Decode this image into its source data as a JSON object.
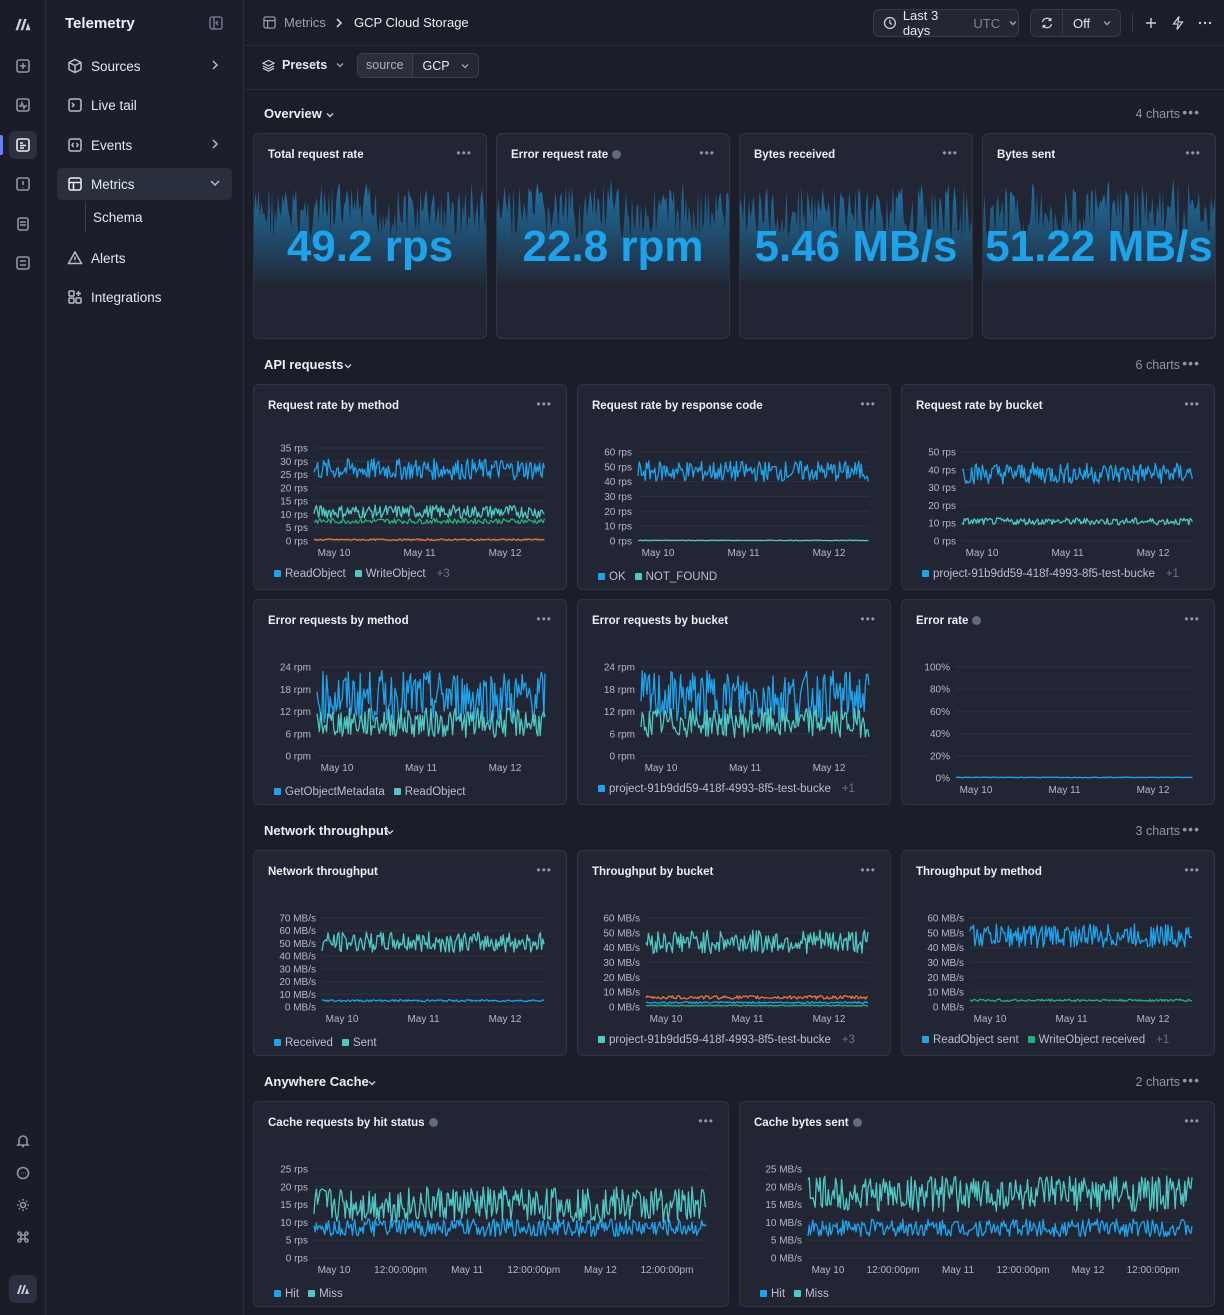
{
  "app": {
    "name": "Telemetry"
  },
  "nav": {
    "sources": "Sources",
    "live_tail": "Live tail",
    "events": "Events",
    "metrics": "Metrics",
    "schema": "Schema",
    "alerts": "Alerts",
    "integrations": "Integrations"
  },
  "breadcrumb": {
    "parent": "Metrics",
    "current": "GCP Cloud Storage"
  },
  "time": {
    "label": "Last 3 days",
    "tz": "UTC"
  },
  "refresh": {
    "value": "Off"
  },
  "filters": {
    "presets": "Presets",
    "key": "source",
    "value": "GCP"
  },
  "sections": [
    {
      "title": "Overview",
      "count": "4 charts"
    },
    {
      "title": "API requests",
      "count": "6 charts"
    },
    {
      "title": "Network throughput",
      "count": "3 charts"
    },
    {
      "title": "Anywhere Cache",
      "count": "2 charts"
    }
  ],
  "stats": [
    {
      "title": "Total request rate",
      "value": "49.2 rps",
      "info": false
    },
    {
      "title": "Error request rate",
      "value": "22.8 rpm",
      "info": true
    },
    {
      "title": "Bytes received",
      "value": "5.46 MB/s",
      "info": false
    },
    {
      "title": "Bytes sent",
      "value": "51.22 MB/s",
      "info": false
    }
  ],
  "colors": {
    "blue": "#1ea3ea",
    "teal": "#4fc7c3",
    "green": "#22b07d",
    "orange": "#e8743b",
    "yellow": "#d9a43a"
  },
  "chart_data": [
    {
      "id": "c1",
      "title": "Request rate by method",
      "type": "line",
      "info": false,
      "yticks": [
        "35 rps",
        "30 rps",
        "25 rps",
        "20 rps",
        "15 rps",
        "10 rps",
        "5 rps",
        "0 rps"
      ],
      "ylim": [
        0,
        35
      ],
      "xticks": [
        "May 10",
        "May 11",
        "May 12"
      ],
      "series": [
        {
          "name": "ReadObject",
          "color": "#1ea3ea",
          "mean": 27,
          "amp": 4
        },
        {
          "name": "WriteObject",
          "color": "#4fc7c3",
          "mean": 11,
          "amp": 2.5
        },
        {
          "name": "",
          "color": "#22b07d",
          "mean": 7.5,
          "amp": 1
        },
        {
          "name": "",
          "color": "#e8743b",
          "mean": 0.5,
          "amp": 0.3
        }
      ],
      "legend": [
        "ReadObject",
        "WriteObject"
      ],
      "more": "+3"
    },
    {
      "id": "c2",
      "title": "Request rate by response code",
      "type": "line",
      "info": false,
      "yticks": [
        "60 rps",
        "50 rps",
        "40 rps",
        "30 rps",
        "20 rps",
        "10 rps",
        "0 rps"
      ],
      "ylim": [
        0,
        60
      ],
      "xticks": [
        "May 10",
        "May 11",
        "May 12"
      ],
      "series": [
        {
          "name": "OK",
          "color": "#1ea3ea",
          "mean": 47,
          "amp": 7
        },
        {
          "name": "NOT_FOUND",
          "color": "#4fc7c3",
          "mean": 0.4,
          "amp": 0.2
        }
      ],
      "legend": [
        "OK",
        "NOT_FOUND"
      ],
      "more": ""
    },
    {
      "id": "c3",
      "title": "Request rate by bucket",
      "type": "line",
      "info": false,
      "yticks": [
        "50 rps",
        "40 rps",
        "30 rps",
        "20 rps",
        "10 rps",
        "0 rps"
      ],
      "ylim": [
        0,
        50
      ],
      "xticks": [
        "May 10",
        "May 11",
        "May 12"
      ],
      "series": [
        {
          "name": "project-91b9dd59-418f-4993-8f5-test-bucke",
          "color": "#1ea3ea",
          "mean": 38,
          "amp": 6
        },
        {
          "name": "",
          "color": "#4fc7c3",
          "mean": 11,
          "amp": 2
        }
      ],
      "legend": [
        "project-91b9dd59-418f-4993-8f5-test-bucke"
      ],
      "more": "+1"
    },
    {
      "id": "c4",
      "title": "Error requests by method",
      "type": "line",
      "info": false,
      "yticks": [
        "24 rpm",
        "18 rpm",
        "12 rpm",
        "6 rpm",
        "0 rpm"
      ],
      "ylim": [
        0,
        24
      ],
      "xticks": [
        "May 10",
        "May 11",
        "May 12"
      ],
      "series": [
        {
          "name": "GetObjectMetadata",
          "color": "#1ea3ea",
          "mean": 16,
          "amp": 7
        },
        {
          "name": "ReadObject",
          "color": "#4fc7c3",
          "mean": 9,
          "amp": 4
        }
      ],
      "legend": [
        "GetObjectMetadata",
        "ReadObject"
      ],
      "more": ""
    },
    {
      "id": "c5",
      "title": "Error requests by bucket",
      "type": "line",
      "info": false,
      "yticks": [
        "24 rpm",
        "18 rpm",
        "12 rpm",
        "6 rpm",
        "0 rpm"
      ],
      "ylim": [
        0,
        24
      ],
      "xticks": [
        "May 10",
        "May 11",
        "May 12"
      ],
      "series": [
        {
          "name": "project-91b9dd59-418f-4993-8f5-test-bucke",
          "color": "#1ea3ea",
          "mean": 16,
          "amp": 7
        },
        {
          "name": "",
          "color": "#4fc7c3",
          "mean": 9,
          "amp": 4
        }
      ],
      "legend": [
        "project-91b9dd59-418f-4993-8f5-test-bucke"
      ],
      "more": "+1"
    },
    {
      "id": "c6",
      "title": "Error rate",
      "type": "line",
      "info": true,
      "yticks": [
        "100%",
        "80%",
        "60%",
        "40%",
        "20%",
        "0%"
      ],
      "ylim": [
        0,
        100
      ],
      "xticks": [
        "May 10",
        "May 11",
        "May 12"
      ],
      "series": [
        {
          "name": "",
          "color": "#1ea3ea",
          "mean": 0.6,
          "amp": 0.3
        }
      ],
      "legend": [],
      "more": ""
    },
    {
      "id": "c7",
      "title": "Network throughput",
      "type": "line",
      "info": false,
      "yticks": [
        "70 MB/s",
        "60 MB/s",
        "50 MB/s",
        "40 MB/s",
        "30 MB/s",
        "20 MB/s",
        "10 MB/s",
        "0 MB/s"
      ],
      "ylim": [
        0,
        70
      ],
      "xticks": [
        "May 10",
        "May 11",
        "May 12"
      ],
      "series": [
        {
          "name": "Received",
          "color": "#1ea3ea",
          "mean": 5,
          "amp": 0.8
        },
        {
          "name": "Sent",
          "color": "#4fc7c3",
          "mean": 51,
          "amp": 8
        }
      ],
      "legend": [
        "Received",
        "Sent"
      ],
      "more": ""
    },
    {
      "id": "c8",
      "title": "Throughput by bucket",
      "type": "line",
      "info": false,
      "yticks": [
        "60 MB/s",
        "50 MB/s",
        "40 MB/s",
        "30 MB/s",
        "20 MB/s",
        "10 MB/s",
        "0 MB/s"
      ],
      "ylim": [
        0,
        60
      ],
      "xticks": [
        "May 10",
        "May 11",
        "May 12"
      ],
      "series": [
        {
          "name": "project-91b9dd59-418f-4993-8f5-test-bucke",
          "color": "#4fc7c3",
          "mean": 44,
          "amp": 8
        },
        {
          "name": "",
          "color": "#e8743b",
          "mean": 6.5,
          "amp": 1.2
        },
        {
          "name": "",
          "color": "#1ea3ea",
          "mean": 3,
          "amp": 0.6
        },
        {
          "name": "",
          "color": "#22b07d",
          "mean": 1,
          "amp": 0.3
        }
      ],
      "legend": [
        "project-91b9dd59-418f-4993-8f5-test-bucke"
      ],
      "more": "+3"
    },
    {
      "id": "c9",
      "title": "Throughput by method",
      "type": "line",
      "info": false,
      "yticks": [
        "60 MB/s",
        "50 MB/s",
        "40 MB/s",
        "30 MB/s",
        "20 MB/s",
        "10 MB/s",
        "0 MB/s"
      ],
      "ylim": [
        0,
        60
      ],
      "xticks": [
        "May 10",
        "May 11",
        "May 12"
      ],
      "series": [
        {
          "name": "ReadObject sent",
          "color": "#1ea3ea",
          "mean": 48,
          "amp": 8
        },
        {
          "name": "WriteObject received",
          "color": "#22b07d",
          "mean": 4.5,
          "amp": 0.8
        }
      ],
      "legend": [
        "ReadObject sent",
        "WriteObject received"
      ],
      "more": "+1"
    },
    {
      "id": "c10",
      "title": "Cache requests by hit status",
      "type": "line",
      "info": true,
      "yticks": [
        "25 rps",
        "20 rps",
        "15 rps",
        "10 rps",
        "5 rps",
        "0 rps"
      ],
      "ylim": [
        0,
        25
      ],
      "xticks": [
        "May 10",
        "12:00:00pm",
        "May 11",
        "12:00:00pm",
        "May 12",
        "12:00:00pm"
      ],
      "series": [
        {
          "name": "Hit",
          "color": "#1ea3ea",
          "mean": 8.5,
          "amp": 2.5
        },
        {
          "name": "Miss",
          "color": "#4fc7c3",
          "mean": 15,
          "amp": 5
        }
      ],
      "legend": [
        "Hit",
        "Miss"
      ],
      "more": ""
    },
    {
      "id": "c11",
      "title": "Cache bytes sent",
      "type": "line",
      "info": true,
      "yticks": [
        "25 MB/s",
        "20 MB/s",
        "15 MB/s",
        "10 MB/s",
        "5 MB/s",
        "0 MB/s"
      ],
      "ylim": [
        0,
        25
      ],
      "xticks": [
        "May 10",
        "12:00:00pm",
        "May 11",
        "12:00:00pm",
        "May 12",
        "12:00:00pm"
      ],
      "series": [
        {
          "name": "Hit",
          "color": "#1ea3ea",
          "mean": 8.5,
          "amp": 2.5
        },
        {
          "name": "Miss",
          "color": "#4fc7c3",
          "mean": 18,
          "amp": 5
        }
      ],
      "legend": [
        "Hit",
        "Miss"
      ],
      "more": ""
    }
  ]
}
